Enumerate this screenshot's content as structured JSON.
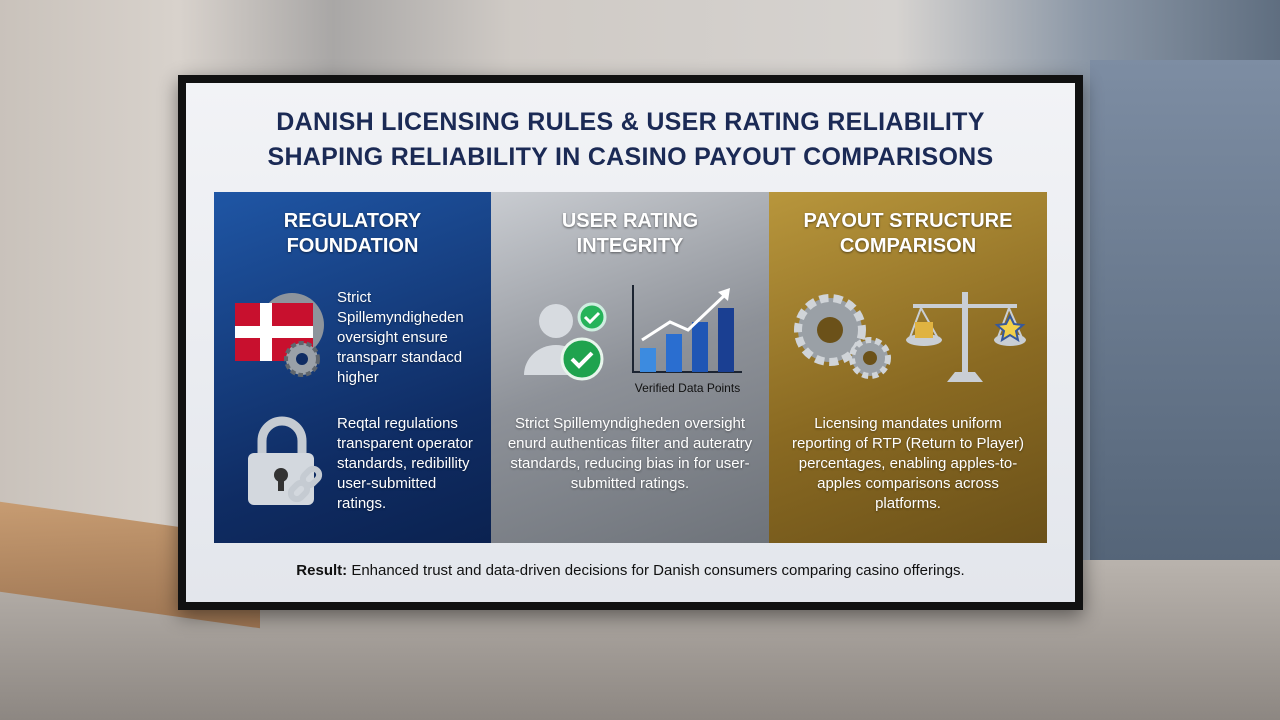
{
  "title": {
    "lines": [
      "DANISH LICENSING RULES & USER RATING RELIABILITY",
      "SHAPING RELIABILITY IN CASINO PAYOUT COMPARISONS"
    ]
  },
  "panels": [
    {
      "heading": [
        "REGULATORY",
        "FOUNDATION"
      ],
      "texts": [
        "Strict Spillemyndigheden oversight ensure transparr standacd higher",
        "Reqtal regulations transparent operator standards, redibillity user-submitted ratings."
      ]
    },
    {
      "heading": [
        "USER RATING",
        "INTEGRITY"
      ],
      "caption": "Verified Data Points",
      "texts": [
        "Strict Spillemyndigheden oversight enurd authenticas filter and auteratry standards, reducing bias in for user-submitted ratings."
      ]
    },
    {
      "heading": [
        "PAYOUT STRUCTURE",
        "COMPARISON"
      ],
      "texts": [
        "Licensing mandates uniform reporting of RTP (Return to Player) percentages, enabling apples-to-apples comparisons across platforms."
      ]
    }
  ],
  "footer": {
    "label": "Result:",
    "text": "Enhanced trust and data-driven decisions for Danish consumers comparing casino offerings."
  }
}
